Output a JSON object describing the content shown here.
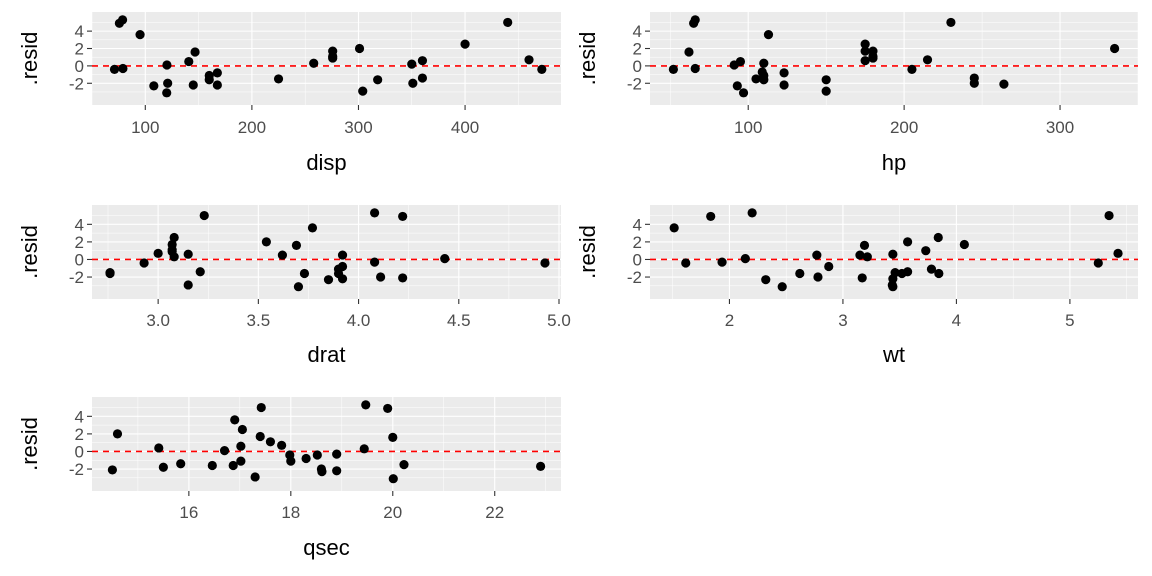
{
  "chart_data": [
    {
      "type": "scatter",
      "xlabel": "disp",
      "ylabel": ".resid",
      "xlim": [
        50,
        490
      ],
      "ylim": [
        -4.5,
        6.2
      ],
      "xticks": [
        100,
        200,
        300,
        400
      ],
      "yticks": [
        -2,
        0,
        2,
        4
      ],
      "hline": 0,
      "x": [
        160,
        160,
        108,
        258,
        360,
        225,
        360,
        146.7,
        140.8,
        167.6,
        167.6,
        275.8,
        275.8,
        275.8,
        472,
        460,
        440,
        78.7,
        75.7,
        71.1,
        120.1,
        318,
        304,
        350,
        400,
        79,
        120.3,
        95.1,
        351,
        145,
        301,
        121
      ],
      "y": [
        -1.6,
        -1.1,
        -2.3,
        0.3,
        0.6,
        -1.5,
        -1.4,
        1.6,
        0.5,
        -0.8,
        -2.2,
        1.1,
        1.7,
        0.9,
        -0.4,
        0.7,
        5.0,
        5.3,
        4.9,
        -0.4,
        -3.1,
        -1.6,
        -2.9,
        0.2,
        2.5,
        -0.3,
        0.1,
        3.6,
        -2.0,
        -2.2,
        2.0,
        -2.0
      ]
    },
    {
      "type": "scatter",
      "xlabel": "hp",
      "ylabel": ".resid",
      "xlim": [
        37,
        350
      ],
      "ylim": [
        -4.5,
        6.2
      ],
      "xticks": [
        100,
        200,
        300
      ],
      "yticks": [
        -2,
        0,
        2,
        4
      ],
      "hline": 0,
      "x": [
        110,
        110,
        93,
        110,
        175,
        105,
        245,
        62,
        95,
        123,
        123,
        180,
        180,
        180,
        205,
        215,
        230,
        66,
        52,
        65,
        97,
        150,
        150,
        245,
        175,
        66,
        91,
        113,
        264,
        175,
        335,
        109
      ],
      "y": [
        -1.6,
        -1.1,
        -2.3,
        0.3,
        0.6,
        -1.5,
        -1.4,
        1.6,
        0.5,
        -0.8,
        -2.2,
        1.1,
        1.7,
        0.9,
        -0.4,
        0.7,
        5.0,
        5.3,
        -0.4,
        4.9,
        -3.1,
        -1.6,
        -2.9,
        -2.0,
        2.5,
        -0.3,
        0.1,
        3.6,
        -2.1,
        1.7,
        2.0,
        -0.7
      ]
    },
    {
      "type": "scatter",
      "xlabel": "drat",
      "ylabel": ".resid",
      "xlim": [
        2.67,
        5.01
      ],
      "ylim": [
        -4.5,
        6.2
      ],
      "xticks": [
        3.0,
        3.5,
        4.0,
        4.5,
        5.0
      ],
      "yticks": [
        -2,
        0,
        2,
        4
      ],
      "hline": 0,
      "x": [
        3.9,
        3.9,
        3.85,
        3.08,
        3.15,
        2.76,
        3.21,
        3.69,
        3.92,
        3.92,
        3.92,
        3.07,
        3.07,
        3.07,
        2.93,
        3.0,
        3.23,
        4.08,
        4.93,
        4.22,
        3.7,
        2.76,
        3.15,
        3.73,
        3.08,
        4.08,
        4.43,
        3.77,
        4.22,
        3.62,
        3.54,
        4.11
      ],
      "y": [
        -1.6,
        -1.1,
        -2.3,
        0.3,
        0.6,
        -1.5,
        -1.4,
        1.6,
        0.5,
        -0.8,
        -2.2,
        1.1,
        1.7,
        0.9,
        -0.4,
        0.7,
        5.0,
        5.3,
        -0.4,
        4.9,
        -3.1,
        -1.6,
        -2.9,
        -1.6,
        2.5,
        -0.3,
        0.1,
        3.6,
        -2.1,
        0.5,
        2.0,
        -2.0
      ]
    },
    {
      "type": "scatter",
      "xlabel": "wt",
      "ylabel": ".resid",
      "xlim": [
        1.3,
        5.6
      ],
      "ylim": [
        -4.5,
        6.2
      ],
      "xticks": [
        2,
        3,
        4,
        5
      ],
      "yticks": [
        -2,
        0,
        2,
        4
      ],
      "hline": 0,
      "x": [
        2.62,
        2.875,
        2.32,
        3.215,
        3.44,
        3.46,
        3.57,
        3.19,
        3.15,
        3.44,
        3.44,
        4.07,
        3.73,
        3.78,
        5.25,
        5.424,
        5.345,
        2.2,
        1.615,
        1.835,
        2.465,
        3.52,
        3.435,
        3.84,
        3.845,
        1.935,
        2.14,
        1.513,
        3.17,
        2.77,
        3.57,
        2.78
      ],
      "y": [
        -1.6,
        -0.8,
        -2.3,
        0.3,
        0.6,
        -1.5,
        -1.4,
        1.6,
        0.5,
        -2.2,
        -3.1,
        1.7,
        1.0,
        -1.1,
        -0.4,
        0.7,
        5.0,
        5.3,
        -0.4,
        4.9,
        -3.1,
        -1.6,
        -2.9,
        2.5,
        -1.6,
        -0.3,
        0.1,
        3.6,
        -2.1,
        0.5,
        2.0,
        -2.0
      ]
    },
    {
      "type": "scatter",
      "xlabel": "qsec",
      "ylabel": ".resid",
      "xlim": [
        14.1,
        23.3
      ],
      "ylim": [
        -4.5,
        6.2
      ],
      "xticks": [
        16,
        18,
        20,
        22
      ],
      "yticks": [
        -2,
        0,
        2,
        4
      ],
      "hline": 0,
      "x": [
        16.46,
        17.02,
        18.61,
        19.44,
        17.02,
        20.22,
        15.84,
        20.0,
        22.9,
        18.3,
        18.9,
        17.4,
        17.6,
        18.0,
        17.98,
        17.82,
        17.42,
        19.47,
        18.52,
        19.9,
        20.01,
        16.87,
        17.3,
        15.41,
        17.05,
        18.9,
        16.7,
        16.9,
        14.5,
        15.5,
        14.6,
        18.6
      ],
      "y": [
        -1.6,
        -1.1,
        -2.3,
        0.3,
        0.6,
        -1.5,
        -1.4,
        1.6,
        -1.7,
        -0.8,
        -2.2,
        1.7,
        1.1,
        -1.1,
        -0.4,
        0.7,
        5.0,
        5.3,
        -0.4,
        4.9,
        -3.1,
        -1.6,
        -2.9,
        0.4,
        2.5,
        -0.3,
        0.1,
        3.6,
        -2.1,
        -1.8,
        2.0,
        -2.0
      ]
    }
  ]
}
